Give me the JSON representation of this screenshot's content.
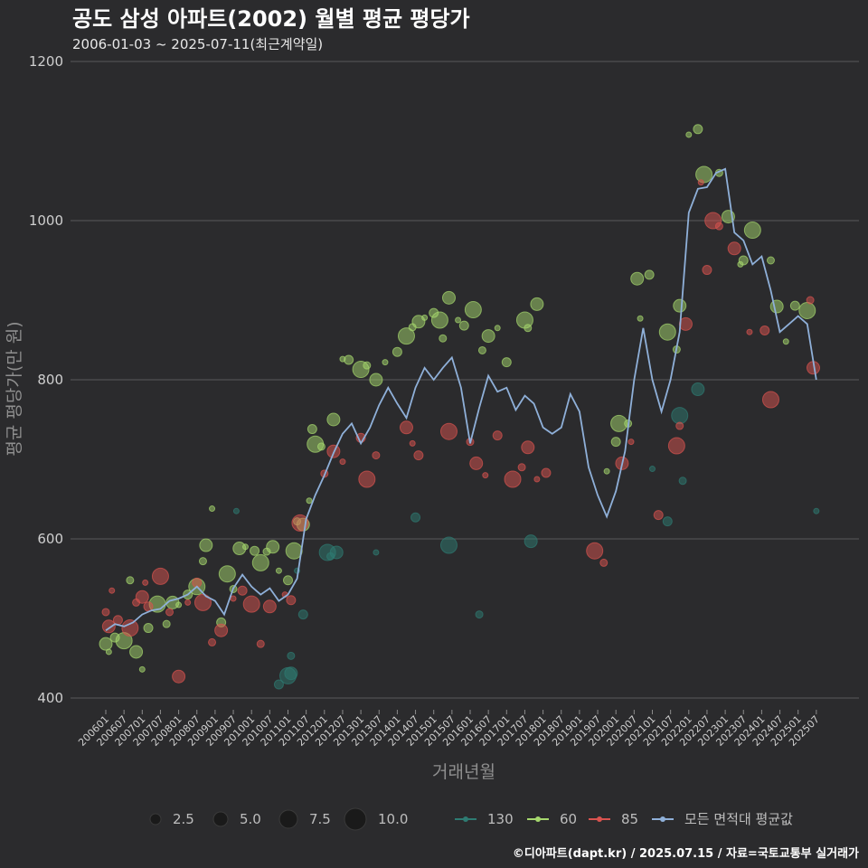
{
  "chart_data": {
    "type": "scatter",
    "title": "공도 삼성 아파트(2002) 월별 평균 평당가",
    "subtitle": "2006-01-03 ~ 2025-07-11(최근계약일)",
    "xlabel": "거래년월",
    "ylabel": "평균 평당가(만 원)",
    "ylim": [
      400,
      1200
    ],
    "yticks": [
      400,
      600,
      800,
      1000,
      1200
    ],
    "x_categories": [
      "200601",
      "200607",
      "200701",
      "200707",
      "200801",
      "200807",
      "200901",
      "200907",
      "201001",
      "201007",
      "201101",
      "201107",
      "201201",
      "201207",
      "201301",
      "201307",
      "201401",
      "201407",
      "201501",
      "201507",
      "201601",
      "201607",
      "201701",
      "201707",
      "201801",
      "201807",
      "201901",
      "201907",
      "202001",
      "202007",
      "202101",
      "202107",
      "202201",
      "202207",
      "202301",
      "202307",
      "202401",
      "202407",
      "202501",
      "202507"
    ],
    "size_legend": {
      "labels": [
        "2.5",
        "5.0",
        "7.5",
        "10.0"
      ],
      "values": [
        2.5,
        5.0,
        7.5,
        10.0
      ]
    },
    "series": [
      {
        "name": "130",
        "color": "#2e7b72",
        "points": [
          [
            "2009-08",
            635
          ],
          [
            "2010-10",
            417
          ],
          [
            "2011-01",
            428
          ],
          [
            "2011-02",
            453
          ],
          [
            "2011-02",
            431
          ],
          [
            "2011-04",
            560
          ],
          [
            "2011-06",
            505
          ],
          [
            "2012-02",
            583
          ],
          [
            "2012-03",
            578
          ],
          [
            "2012-05",
            583
          ],
          [
            "2013-06",
            583
          ],
          [
            "2014-07",
            627
          ],
          [
            "2015-06",
            592
          ],
          [
            "2016-04",
            505
          ],
          [
            "2017-09",
            597
          ],
          [
            "2021-01",
            688
          ],
          [
            "2021-06",
            622
          ],
          [
            "2021-10",
            755
          ],
          [
            "2021-11",
            673
          ],
          [
            "2022-04",
            788
          ],
          [
            "2025-07",
            635
          ]
        ]
      },
      {
        "name": "60",
        "color": "#a6d86e",
        "points": [
          [
            "2006-01",
            468
          ],
          [
            "2006-02",
            458
          ],
          [
            "2006-04",
            476
          ],
          [
            "2006-07",
            472
          ],
          [
            "2006-09",
            548
          ],
          [
            "2006-11",
            458
          ],
          [
            "2007-01",
            436
          ],
          [
            "2007-03",
            488
          ],
          [
            "2007-06",
            518
          ],
          [
            "2007-09",
            493
          ],
          [
            "2007-11",
            520
          ],
          [
            "2008-01",
            517
          ],
          [
            "2008-04",
            530
          ],
          [
            "2008-07",
            540
          ],
          [
            "2008-09",
            572
          ],
          [
            "2008-10",
            592
          ],
          [
            "2008-12",
            638
          ],
          [
            "2009-03",
            495
          ],
          [
            "2009-05",
            556
          ],
          [
            "2009-07",
            537
          ],
          [
            "2009-09",
            588
          ],
          [
            "2009-11",
            590
          ],
          [
            "2010-02",
            585
          ],
          [
            "2010-04",
            570
          ],
          [
            "2010-06",
            584
          ],
          [
            "2010-08",
            590
          ],
          [
            "2010-10",
            560
          ],
          [
            "2011-01",
            548
          ],
          [
            "2011-03",
            585
          ],
          [
            "2011-04",
            622
          ],
          [
            "2011-06",
            618
          ],
          [
            "2011-08",
            648
          ],
          [
            "2011-09",
            738
          ],
          [
            "2011-10",
            719
          ],
          [
            "2011-12",
            716
          ],
          [
            "2012-04",
            750
          ],
          [
            "2012-07",
            826
          ],
          [
            "2012-09",
            825
          ],
          [
            "2013-01",
            813
          ],
          [
            "2013-03",
            818
          ],
          [
            "2013-06",
            800
          ],
          [
            "2013-09",
            822
          ],
          [
            "2014-01",
            835
          ],
          [
            "2014-04",
            855
          ],
          [
            "2014-06",
            866
          ],
          [
            "2014-08",
            873
          ],
          [
            "2014-10",
            878
          ],
          [
            "2015-01",
            884
          ],
          [
            "2015-03",
            875
          ],
          [
            "2015-04",
            852
          ],
          [
            "2015-06",
            903
          ],
          [
            "2015-09",
            875
          ],
          [
            "2015-11",
            868
          ],
          [
            "2016-02",
            888
          ],
          [
            "2016-05",
            837
          ],
          [
            "2016-07",
            855
          ],
          [
            "2016-10",
            865
          ],
          [
            "2017-01",
            822
          ],
          [
            "2017-07",
            875
          ],
          [
            "2017-08",
            865
          ],
          [
            "2017-11",
            895
          ],
          [
            "2019-10",
            685
          ],
          [
            "2020-01",
            722
          ],
          [
            "2020-02",
            745
          ],
          [
            "2020-05",
            745
          ],
          [
            "2020-08",
            927
          ],
          [
            "2020-09",
            877
          ],
          [
            "2020-12",
            932
          ],
          [
            "2021-06",
            860
          ],
          [
            "2021-09",
            838
          ],
          [
            "2021-10",
            893
          ],
          [
            "2022-01",
            1108
          ],
          [
            "2022-04",
            1115
          ],
          [
            "2022-06",
            1058
          ],
          [
            "2022-11",
            1060
          ],
          [
            "2023-02",
            1005
          ],
          [
            "2023-06",
            945
          ],
          [
            "2023-07",
            950
          ],
          [
            "2023-10",
            988
          ],
          [
            "2024-04",
            950
          ],
          [
            "2024-06",
            892
          ],
          [
            "2024-09",
            848
          ],
          [
            "2024-12",
            893
          ],
          [
            "2025-04",
            887
          ]
        ]
      },
      {
        "name": "85",
        "color": "#d9534f",
        "points": [
          [
            "2006-01",
            508
          ],
          [
            "2006-02",
            490
          ],
          [
            "2006-03",
            535
          ],
          [
            "2006-05",
            498
          ],
          [
            "2006-09",
            488
          ],
          [
            "2006-11",
            520
          ],
          [
            "2007-01",
            527
          ],
          [
            "2007-02",
            545
          ],
          [
            "2007-03",
            515
          ],
          [
            "2007-07",
            553
          ],
          [
            "2007-10",
            508
          ],
          [
            "2008-01",
            427
          ],
          [
            "2008-04",
            520
          ],
          [
            "2008-07",
            545
          ],
          [
            "2008-09",
            520
          ],
          [
            "2008-12",
            470
          ],
          [
            "2009-03",
            485
          ],
          [
            "2009-07",
            525
          ],
          [
            "2009-10",
            535
          ],
          [
            "2010-01",
            518
          ],
          [
            "2010-04",
            468
          ],
          [
            "2010-07",
            515
          ],
          [
            "2010-12",
            530
          ],
          [
            "2011-02",
            523
          ],
          [
            "2011-05",
            620
          ],
          [
            "2012-01",
            682
          ],
          [
            "2012-04",
            710
          ],
          [
            "2012-07",
            697
          ],
          [
            "2013-01",
            727
          ],
          [
            "2013-03",
            675
          ],
          [
            "2013-06",
            705
          ],
          [
            "2014-04",
            740
          ],
          [
            "2014-06",
            720
          ],
          [
            "2014-08",
            705
          ],
          [
            "2015-06",
            735
          ],
          [
            "2016-01",
            722
          ],
          [
            "2016-03",
            695
          ],
          [
            "2016-06",
            680
          ],
          [
            "2016-10",
            730
          ],
          [
            "2017-03",
            675
          ],
          [
            "2017-06",
            690
          ],
          [
            "2017-08",
            715
          ],
          [
            "2017-11",
            675
          ],
          [
            "2018-02",
            683
          ],
          [
            "2019-06",
            585
          ],
          [
            "2019-09",
            570
          ],
          [
            "2020-03",
            695
          ],
          [
            "2020-06",
            722
          ],
          [
            "2021-03",
            630
          ],
          [
            "2021-09",
            717
          ],
          [
            "2021-10",
            742
          ],
          [
            "2021-12",
            870
          ],
          [
            "2022-05",
            1048
          ],
          [
            "2022-07",
            938
          ],
          [
            "2022-09",
            1000
          ],
          [
            "2022-11",
            993
          ],
          [
            "2023-04",
            965
          ],
          [
            "2023-09",
            860
          ],
          [
            "2024-02",
            862
          ],
          [
            "2024-04",
            775
          ],
          [
            "2025-05",
            900
          ],
          [
            "2025-06",
            815
          ]
        ]
      }
    ],
    "average_line": {
      "name": "모든 면적대 평균값",
      "color": "#8fb0d9",
      "points": [
        [
          "2006-01",
          485
        ],
        [
          "2006-04",
          493
        ],
        [
          "2006-07",
          490
        ],
        [
          "2006-10",
          495
        ],
        [
          "2007-01",
          505
        ],
        [
          "2007-04",
          510
        ],
        [
          "2007-07",
          512
        ],
        [
          "2007-10",
          522
        ],
        [
          "2008-01",
          525
        ],
        [
          "2008-04",
          530
        ],
        [
          "2008-07",
          540
        ],
        [
          "2008-10",
          528
        ],
        [
          "2009-01",
          522
        ],
        [
          "2009-04",
          505
        ],
        [
          "2009-07",
          538
        ],
        [
          "2009-10",
          555
        ],
        [
          "2010-01",
          540
        ],
        [
          "2010-04",
          530
        ],
        [
          "2010-07",
          538
        ],
        [
          "2010-10",
          522
        ],
        [
          "2011-01",
          530
        ],
        [
          "2011-04",
          550
        ],
        [
          "2011-07",
          625
        ],
        [
          "2011-10",
          655
        ],
        [
          "2012-01",
          680
        ],
        [
          "2012-04",
          708
        ],
        [
          "2012-07",
          732
        ],
        [
          "2012-10",
          745
        ],
        [
          "2013-01",
          720
        ],
        [
          "2013-04",
          740
        ],
        [
          "2013-07",
          768
        ],
        [
          "2013-10",
          790
        ],
        [
          "2014-01",
          770
        ],
        [
          "2014-04",
          752
        ],
        [
          "2014-07",
          790
        ],
        [
          "2014-10",
          815
        ],
        [
          "2015-01",
          800
        ],
        [
          "2015-04",
          815
        ],
        [
          "2015-07",
          828
        ],
        [
          "2015-10",
          790
        ],
        [
          "2016-01",
          720
        ],
        [
          "2016-04",
          765
        ],
        [
          "2016-07",
          805
        ],
        [
          "2016-10",
          785
        ],
        [
          "2017-01",
          790
        ],
        [
          "2017-04",
          762
        ],
        [
          "2017-07",
          780
        ],
        [
          "2017-10",
          770
        ],
        [
          "2018-01",
          740
        ],
        [
          "2018-04",
          732
        ],
        [
          "2018-07",
          740
        ],
        [
          "2018-10",
          782
        ],
        [
          "2019-01",
          760
        ],
        [
          "2019-04",
          690
        ],
        [
          "2019-07",
          655
        ],
        [
          "2019-10",
          628
        ],
        [
          "2020-01",
          660
        ],
        [
          "2020-04",
          710
        ],
        [
          "2020-07",
          800
        ],
        [
          "2020-10",
          865
        ],
        [
          "2021-01",
          800
        ],
        [
          "2021-04",
          760
        ],
        [
          "2021-07",
          800
        ],
        [
          "2021-10",
          860
        ],
        [
          "2022-01",
          1010
        ],
        [
          "2022-04",
          1040
        ],
        [
          "2022-07",
          1042
        ],
        [
          "2022-10",
          1060
        ],
        [
          "2023-01",
          1065
        ],
        [
          "2023-04",
          985
        ],
        [
          "2023-07",
          975
        ],
        [
          "2023-10",
          945
        ],
        [
          "2024-01",
          955
        ],
        [
          "2024-04",
          912
        ],
        [
          "2024-07",
          860
        ],
        [
          "2024-10",
          870
        ],
        [
          "2025-01",
          880
        ],
        [
          "2025-04",
          870
        ],
        [
          "2025-07",
          800
        ]
      ]
    },
    "legend_labels": [
      "130",
      "60",
      "85",
      "모든 면적대 평균값"
    ],
    "caption": "©디아파트(dapt.kr) / 2025.07.15 / 자료=국토교통부 실거래가"
  }
}
